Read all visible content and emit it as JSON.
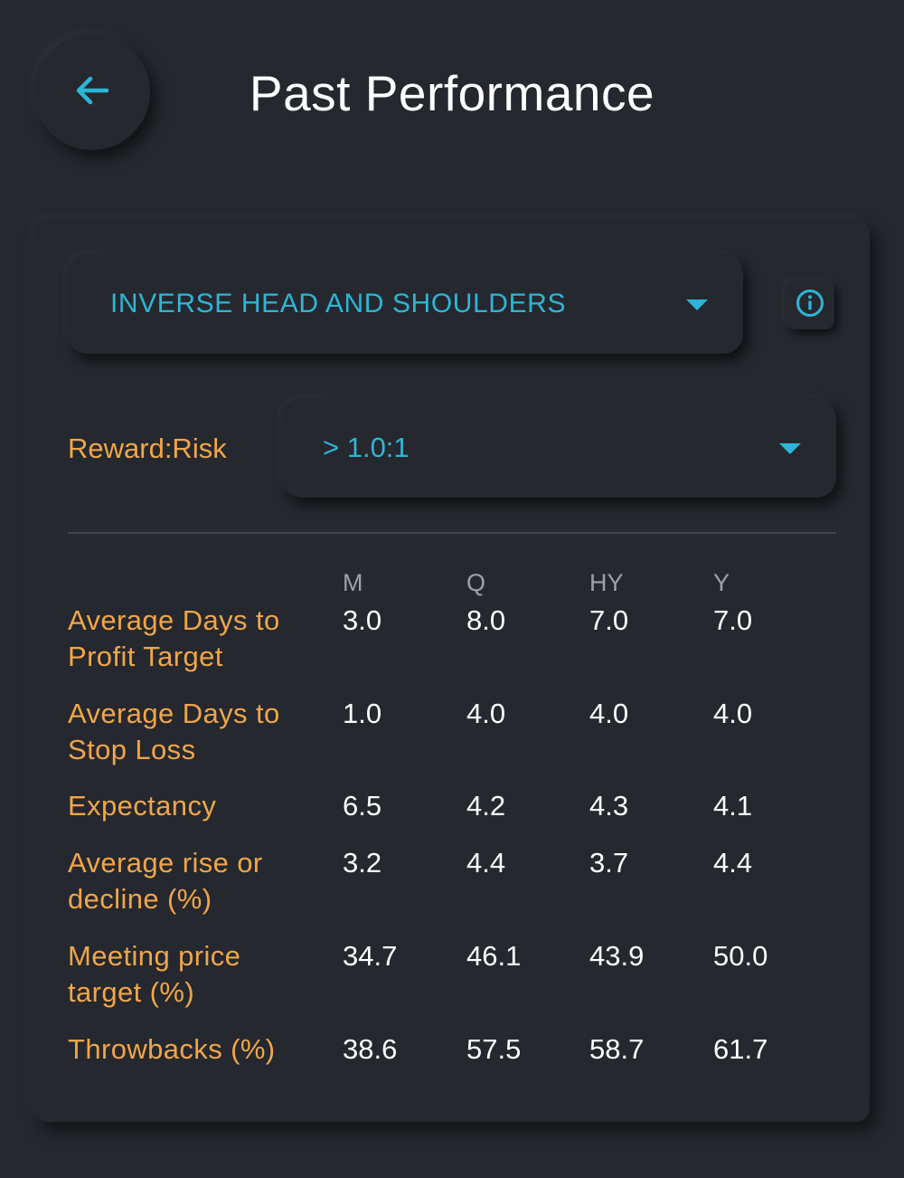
{
  "header": {
    "title": "Past Performance",
    "back_icon": "arrow-left-icon"
  },
  "colors": {
    "background": "#25282e",
    "accent": "#2cb6d6",
    "label": "#f0a64a",
    "text": "#ffffff",
    "muted": "#9ea2a8"
  },
  "filters": {
    "pattern": "INVERSE HEAD AND SHOULDERS",
    "info_icon": "info-icon",
    "reward_risk_label": "Reward:Risk",
    "reward_risk_value": "> 1.0:1"
  },
  "table": {
    "columns": [
      "M",
      "Q",
      "HY",
      "Y"
    ],
    "rows": [
      {
        "label_lines": [
          "Average Days to",
          "Profit Target"
        ],
        "values": [
          "3.0",
          "8.0",
          "7.0",
          "7.0"
        ]
      },
      {
        "label_lines": [
          "Average Days to",
          "Stop Loss"
        ],
        "values": [
          "1.0",
          "4.0",
          "4.0",
          "4.0"
        ]
      },
      {
        "label_lines": [
          "Expectancy"
        ],
        "values": [
          "6.5",
          "4.2",
          "4.3",
          "4.1"
        ]
      },
      {
        "label_lines": [
          "Average rise or",
          "decline (%)"
        ],
        "values": [
          "3.2",
          "4.4",
          "3.7",
          "4.4"
        ]
      },
      {
        "label_lines": [
          "Meeting price",
          "target (%)"
        ],
        "values": [
          "34.7",
          "46.1",
          "43.9",
          "50.0"
        ]
      },
      {
        "label_lines": [
          "Throwbacks (%)"
        ],
        "values": [
          "38.6",
          "57.5",
          "58.7",
          "61.7"
        ]
      }
    ]
  }
}
